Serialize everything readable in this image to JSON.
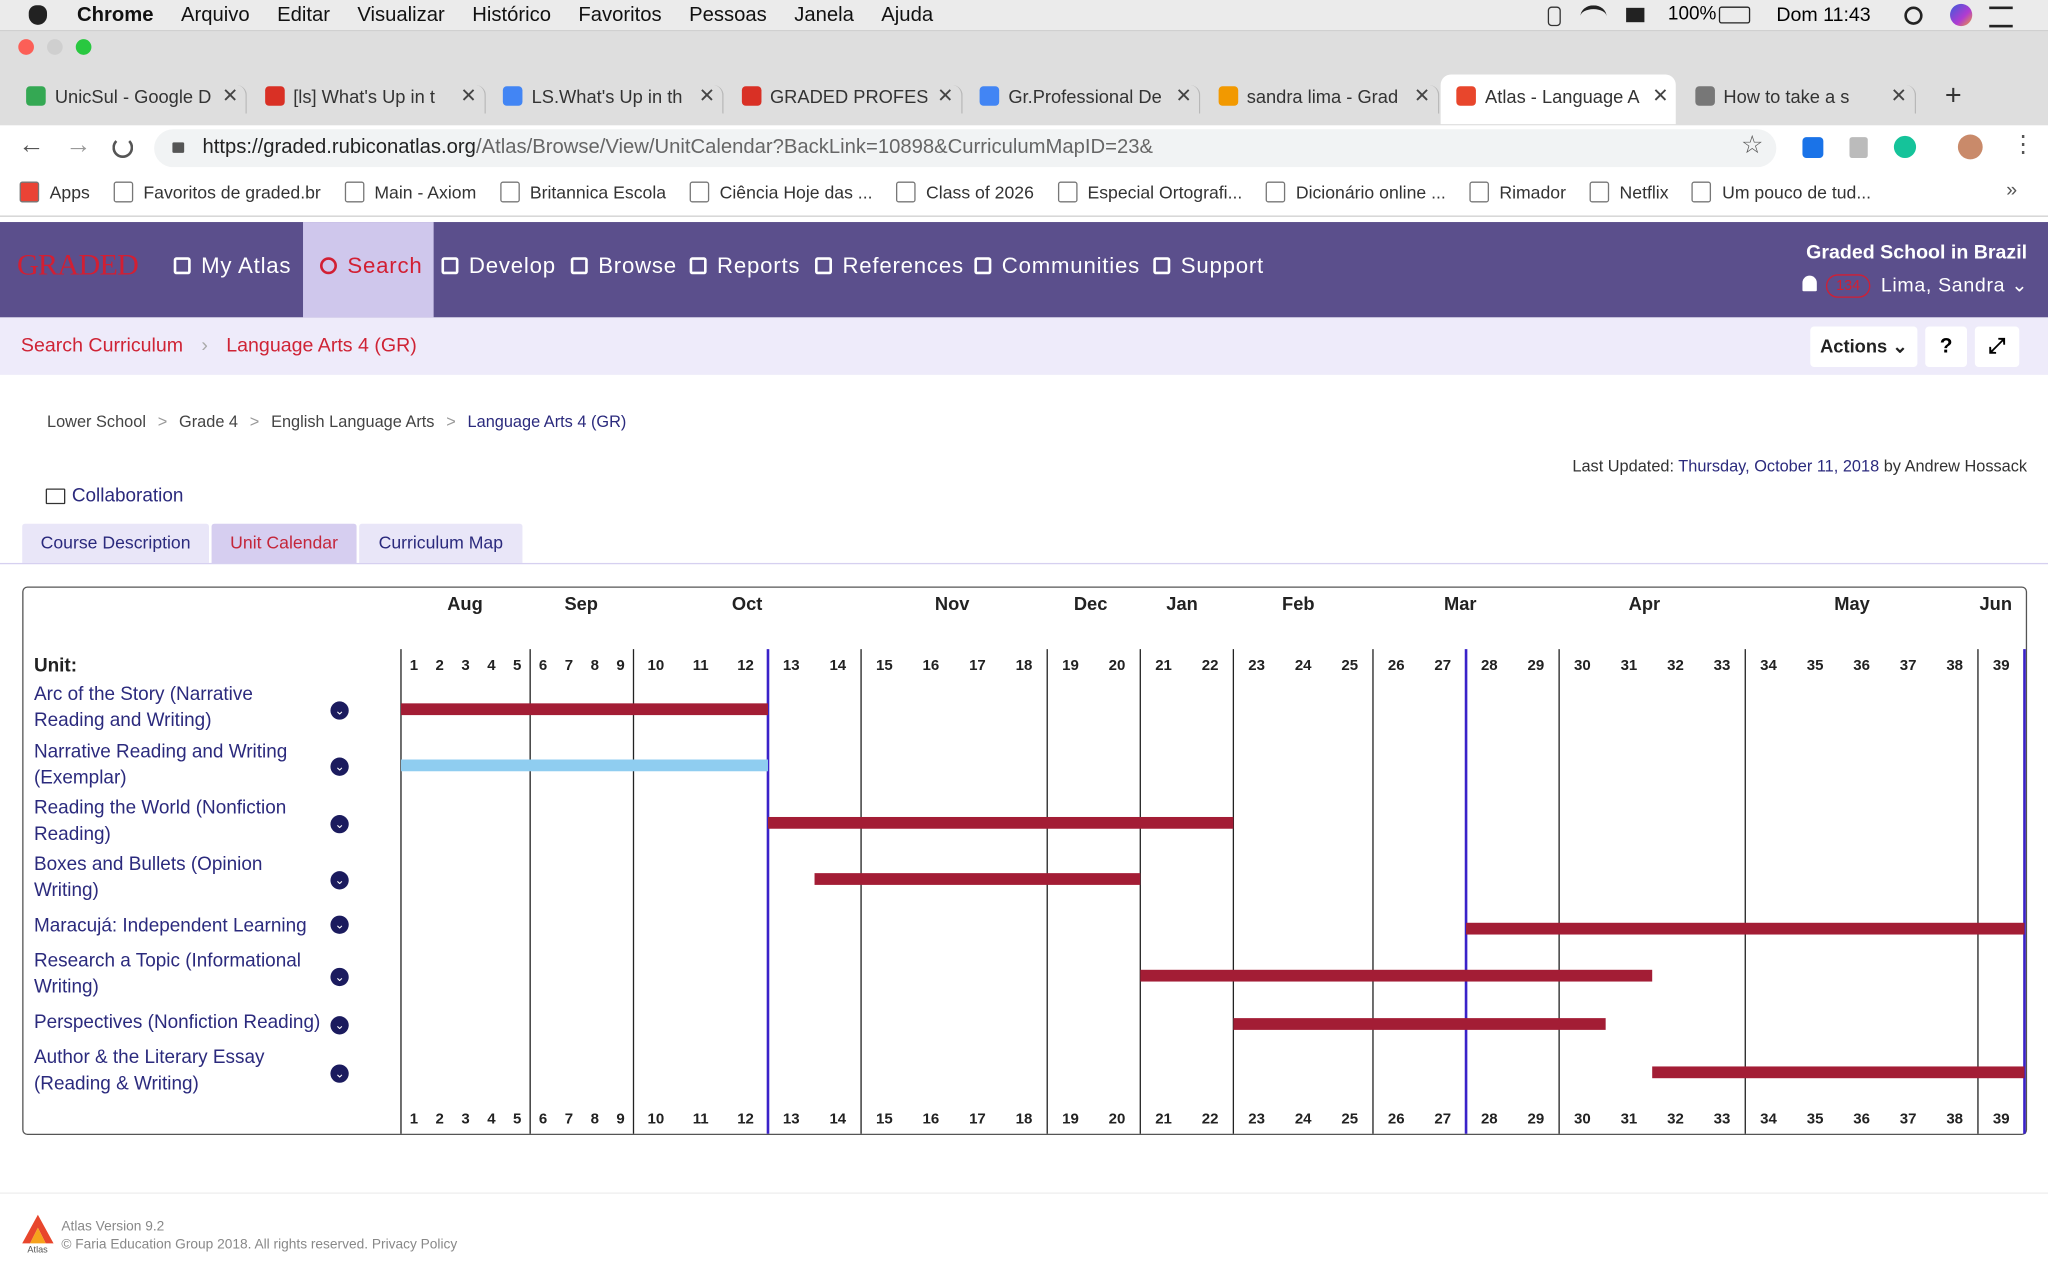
{
  "menubar": {
    "menus": [
      "Chrome",
      "Arquivo",
      "Editar",
      "Visualizar",
      "Histórico",
      "Favoritos",
      "Pessoas",
      "Janela",
      "Ajuda"
    ],
    "battery": "100%",
    "clock": "Dom 11:43"
  },
  "tabs": {
    "items": [
      "UnicSul - Google D",
      "[ls] What's Up in t",
      "LS.What's Up in th",
      "GRADED PROFESS",
      "Gr.Professional De",
      "sandra lima - Grad",
      "Atlas - Language A",
      "How to take a s"
    ],
    "active": 6
  },
  "address": {
    "host": "https://graded.rubiconatlas.org",
    "path": "/Atlas/Browse/View/UnitCalendar?BackLink=10898&CurriculumMapID=23&"
  },
  "bookmarks": [
    "Apps",
    "Favoritos de graded.br",
    "Main - Axiom",
    "Britannica Escola",
    "Ciência Hoje das ...",
    "Class of 2026",
    "Especial Ortografi...",
    "Dicionário online ...",
    "Rimador",
    "Netflix",
    "Um pouco de tud..."
  ],
  "nav": {
    "logo": "GRADED",
    "items": [
      "My Atlas",
      "Search",
      "Develop",
      "Browse",
      "Reports",
      "References",
      "Communities",
      "Support"
    ],
    "active": 1,
    "school": "Graded School in Brazil",
    "notifications": "134",
    "user": "Lima, Sandra"
  },
  "subheader": {
    "crumbs": [
      "Search Curriculum",
      "Language Arts 4 (GR)"
    ],
    "actions": "Actions"
  },
  "breadcrumb": [
    "Lower School",
    "Grade 4",
    "English Language Arts",
    "Language Arts 4 (GR)"
  ],
  "last_updated": {
    "label": "Last Updated:",
    "date": "Thursday, October 11, 2018",
    "by": "by Andrew Hossack"
  },
  "collaboration": "Collaboration",
  "view_tabs": {
    "items": [
      "Course Description",
      "Unit Calendar",
      "Curriculum Map"
    ],
    "active": 1
  },
  "calendar": {
    "unit_label": "Unit:",
    "months": [
      "Aug",
      "Sep",
      "Oct",
      "Nov",
      "Dec",
      "Jan",
      "Feb",
      "Mar",
      "Apr",
      "May",
      "Jun"
    ],
    "weeks": [
      1,
      2,
      3,
      4,
      5,
      6,
      7,
      8,
      9,
      10,
      11,
      12,
      13,
      14,
      15,
      16,
      17,
      18,
      19,
      20,
      21,
      22,
      23,
      24,
      25,
      26,
      27,
      28,
      29,
      30,
      31,
      32,
      33,
      34,
      35,
      36,
      37,
      38,
      39
    ],
    "units": [
      {
        "name": "Arc of the Story (Narrative Reading and Writing)",
        "start_week": 1,
        "end_week": 12,
        "color": "#a31d35"
      },
      {
        "name": "Narrative Reading and Writing (Exemplar)",
        "start_week": 1,
        "end_week": 12,
        "color": "#8fcdf0"
      },
      {
        "name": "Reading the World (Nonfiction Reading)",
        "start_week": 13,
        "end_week": 22,
        "color": "#a31d35"
      },
      {
        "name": "Boxes and Bullets (Opinion Writing)",
        "start_week": 14,
        "end_week": 20,
        "color": "#a31d35"
      },
      {
        "name": "Maracujá: Independent Learning",
        "start_week": 28,
        "end_week": 39,
        "color": "#a31d35"
      },
      {
        "name": "Research a Topic (Informational Writing)",
        "start_week": 21,
        "end_week": 31,
        "color": "#a31d35"
      },
      {
        "name": "Perspectives (Nonfiction Reading)",
        "start_week": 23,
        "end_week": 30,
        "color": "#a31d35"
      },
      {
        "name": "Author & the Literary Essay (Reading & Writing)",
        "start_week": 32,
        "end_week": 39,
        "color": "#a31d35"
      }
    ]
  },
  "footer": {
    "logo": "Atlas",
    "version": "Atlas Version 9.2",
    "copyright": "© Faria Education Group 2018. All rights reserved.",
    "privacy": "Privacy Policy"
  }
}
